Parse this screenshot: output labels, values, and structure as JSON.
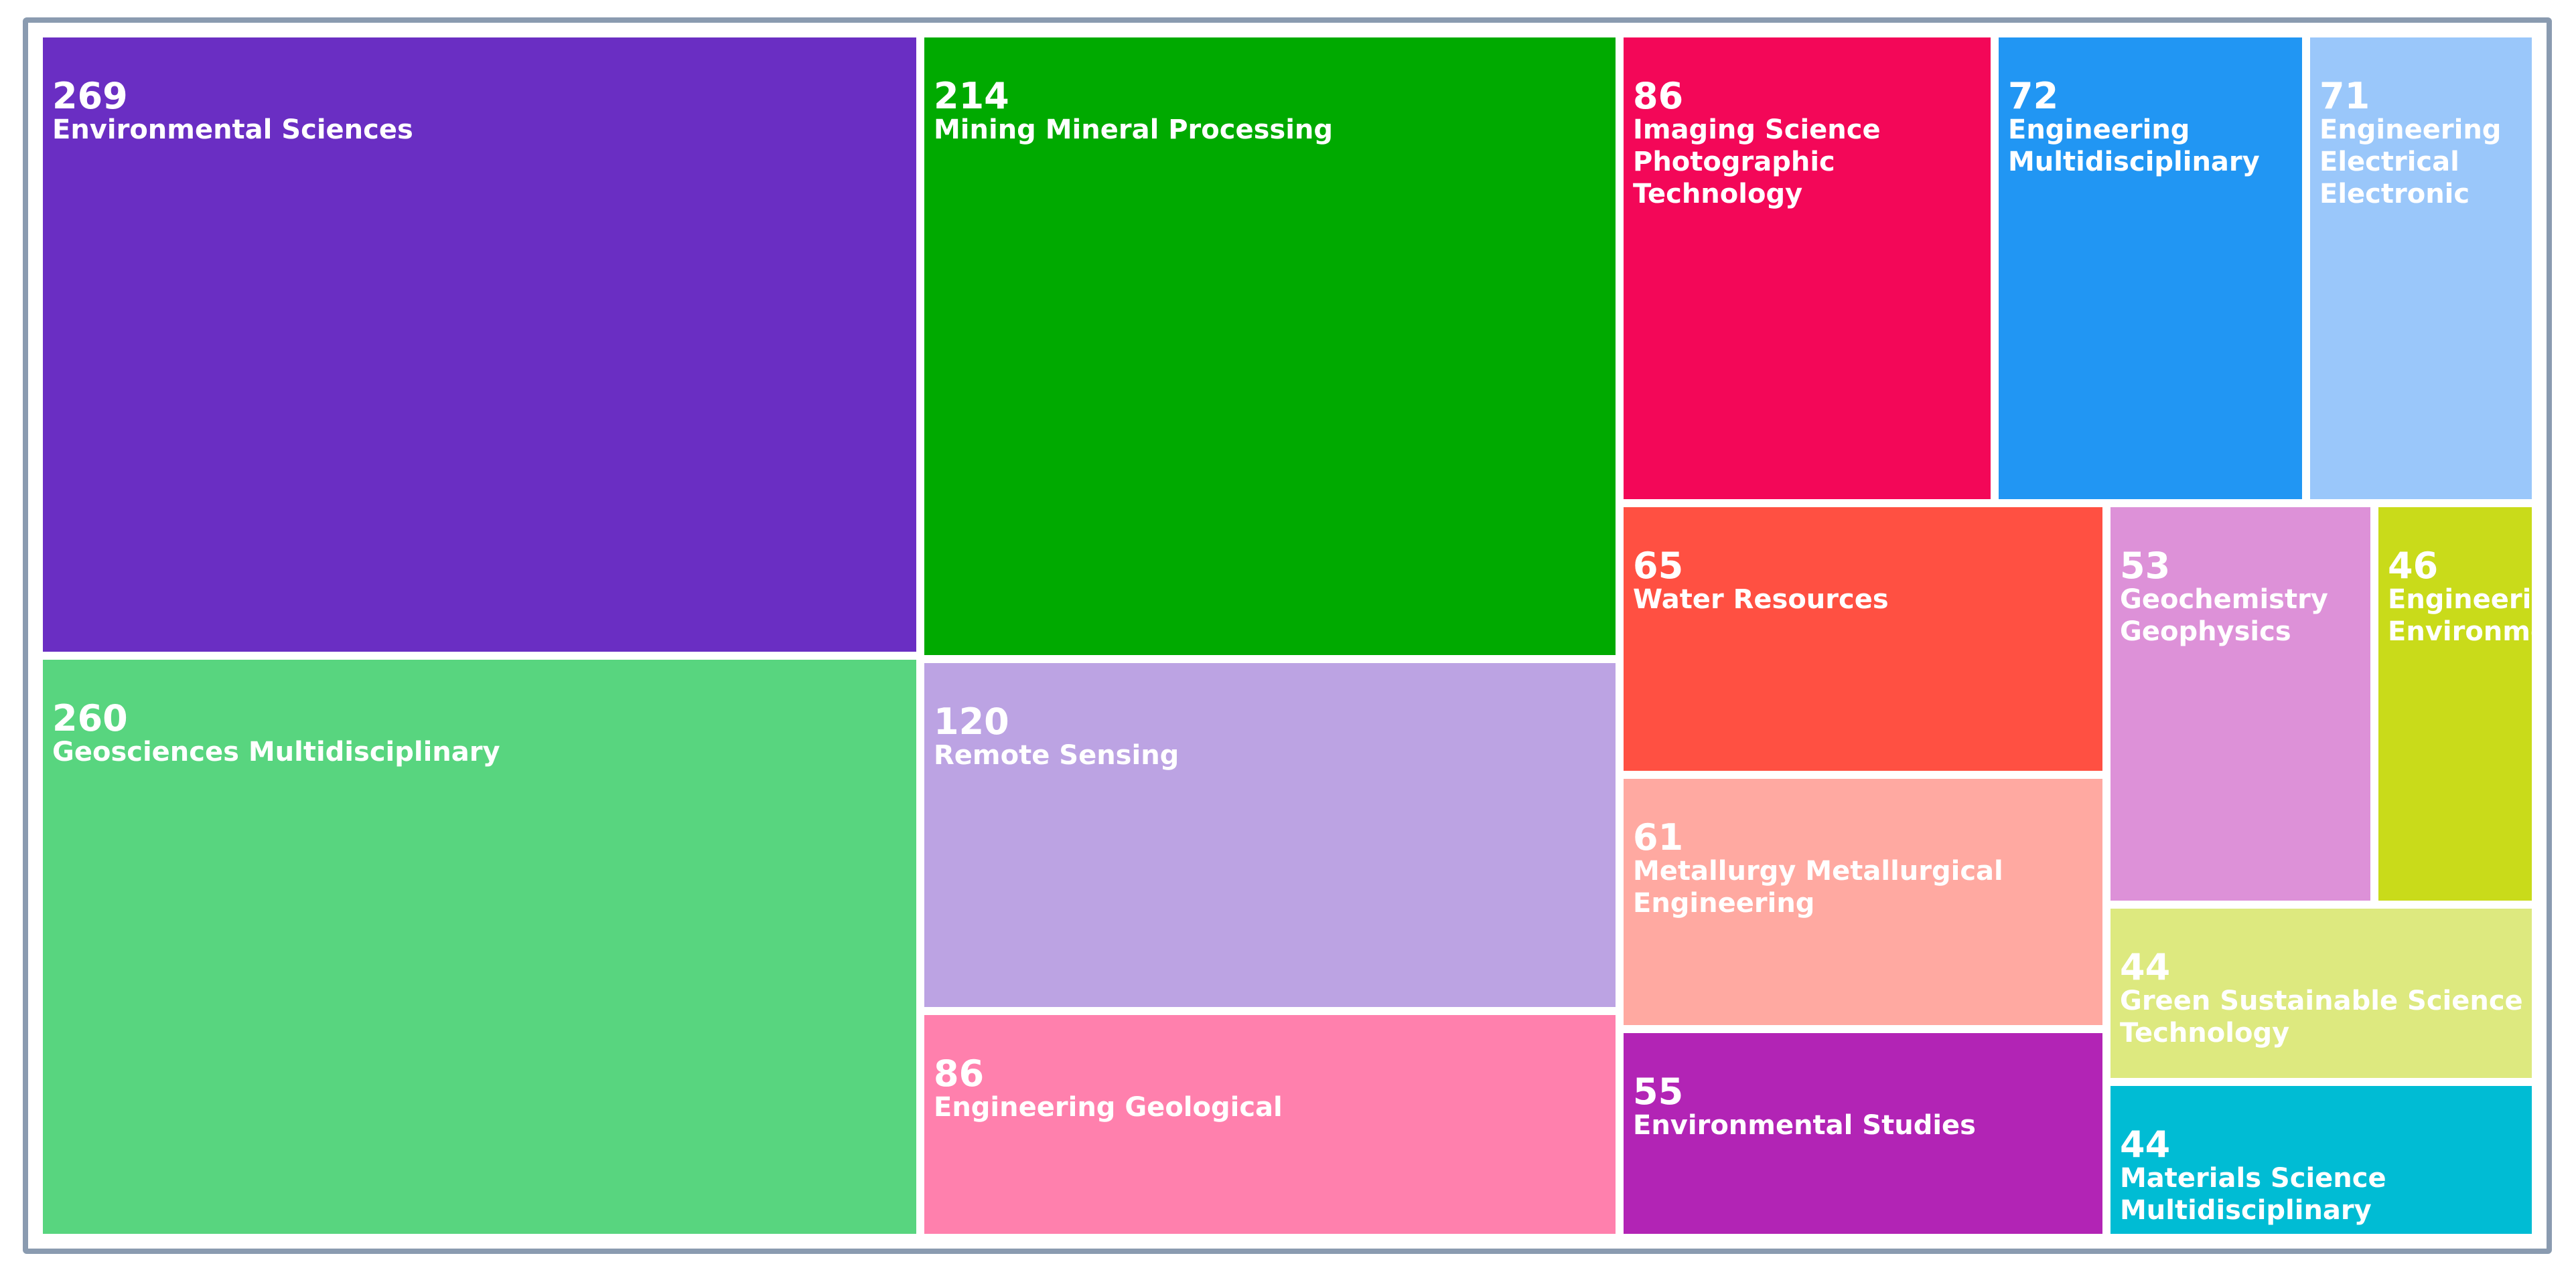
{
  "chart_data": {
    "type": "treemap",
    "items": [
      {
        "label": "Environmental Sciences",
        "value": 269,
        "color": "#6a2ec3"
      },
      {
        "label": "Geosciences Multidisciplinary",
        "value": 260,
        "color": "#58d57f"
      },
      {
        "label": "Mining Mineral Processing",
        "value": 214,
        "color": "#00aa00"
      },
      {
        "label": "Remote Sensing",
        "value": 120,
        "color": "#bca3e3"
      },
      {
        "label": "Engineering Geological",
        "value": 86,
        "color": "#ff80ad"
      },
      {
        "label": "Imaging Science Photographic Technology",
        "lines": [
          "Imaging Science",
          "Photographic",
          "Technology"
        ],
        "value": 86,
        "color": "#f30758"
      },
      {
        "label": "Engineering Multidisciplinary",
        "lines": [
          "Engineering",
          "Multidisciplinary"
        ],
        "value": 72,
        "color": "#2196f3"
      },
      {
        "label": "Engineering Electrical Electronic",
        "lines": [
          "Engineering",
          "Electrical",
          "Electronic"
        ],
        "value": 71,
        "color": "#9ac7fa"
      },
      {
        "label": "Water Resources",
        "value": 65,
        "color": "#ff5042"
      },
      {
        "label": "Metallurgy Metallurgical Engineering",
        "lines": [
          "Metallurgy Metallurgical",
          "Engineering"
        ],
        "value": 61,
        "color": "#ffa9a1"
      },
      {
        "label": "Environmental Studies",
        "value": 55,
        "color": "#b224b5"
      },
      {
        "label": "Geochemistry Geophysics",
        "lines": [
          "Geochemistry",
          "Geophysics"
        ],
        "value": 53,
        "color": "#dd91d8"
      },
      {
        "label": "Engineering Environmental",
        "lines": [
          "Engineering",
          "Environmental"
        ],
        "value": 46,
        "color": "#c9db1a"
      },
      {
        "label": "Green Sustainable Science Technology",
        "lines": [
          "Green Sustainable Science",
          "Technology"
        ],
        "value": 44,
        "color": "#dde97f"
      },
      {
        "label": "Materials Science Multidisciplinary",
        "lines": [
          "Materials Science",
          "Multidisciplinary"
        ],
        "value": 44,
        "color": "#00bcd4"
      }
    ]
  }
}
